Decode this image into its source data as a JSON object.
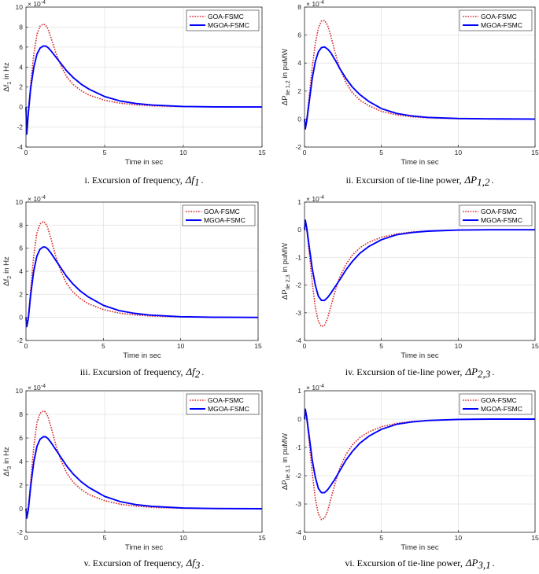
{
  "legend": {
    "series": [
      {
        "name": "GOA-FSMC",
        "color": "#d62728",
        "dash": "dotted"
      },
      {
        "name": "MGOA-FSMC",
        "color": "#0000ff",
        "dash": "solid"
      }
    ]
  },
  "chart_data": [
    {
      "id": "i",
      "type": "line",
      "xlabel": "Time in sec",
      "ylabel_main": "Δf",
      "ylabel_sub": "1",
      "ylabel_unit": "in Hz",
      "exponent": "× 10",
      "exponent_power": "-4",
      "xlim": [
        0,
        15
      ],
      "ylim": [
        -4,
        10
      ],
      "xticks": [
        0,
        5,
        10,
        15
      ],
      "yticks": [
        -4,
        -2,
        0,
        2,
        4,
        6,
        8,
        10
      ],
      "grid": true,
      "legend_position": "top-right",
      "series": [
        {
          "name": "GOA-FSMC",
          "x": [
            0,
            0.05,
            0.15,
            0.3,
            0.5,
            0.7,
            0.9,
            1.1,
            1.25,
            1.4,
            1.6,
            1.9,
            2.2,
            2.6,
            3,
            3.5,
            4,
            5,
            6,
            7,
            8,
            10,
            12,
            15
          ],
          "y": [
            0,
            -2.6,
            -0.5,
            2.4,
            5.3,
            7.3,
            8.1,
            8.3,
            8.2,
            7.8,
            6.9,
            5.4,
            4.2,
            3.0,
            2.25,
            1.65,
            1.2,
            0.68,
            0.38,
            0.22,
            0.12,
            0.04,
            0.01,
            0
          ]
        },
        {
          "name": "MGOA-FSMC",
          "x": [
            0,
            0.05,
            0.15,
            0.3,
            0.5,
            0.7,
            0.9,
            1.1,
            1.25,
            1.4,
            1.6,
            1.9,
            2.2,
            2.6,
            3,
            3.5,
            4,
            5,
            6,
            7,
            8,
            10,
            12,
            15
          ],
          "y": [
            0,
            -2.7,
            -0.6,
            1.9,
            4.0,
            5.3,
            5.9,
            6.1,
            6.1,
            5.95,
            5.6,
            5.0,
            4.4,
            3.6,
            2.95,
            2.3,
            1.8,
            1.05,
            0.6,
            0.35,
            0.2,
            0.06,
            0.02,
            0
          ]
        }
      ],
      "caption_prefix": "i.     Excursion of frequency,",
      "caption_var": "Δf",
      "caption_sub": "1",
      "caption_suffix": "."
    },
    {
      "id": "ii",
      "type": "line",
      "xlabel": "Time in sec",
      "ylabel_main": "ΔP",
      "ylabel_sub": "tie 1,2",
      "ylabel_unit": "in puMW",
      "exponent": "× 10",
      "exponent_power": "-4",
      "xlim": [
        0,
        15
      ],
      "ylim": [
        -2,
        8
      ],
      "xticks": [
        0,
        5,
        10,
        15
      ],
      "yticks": [
        -2,
        0,
        2,
        4,
        6,
        8
      ],
      "grid": true,
      "legend_position": "top-right",
      "series": [
        {
          "name": "GOA-FSMC",
          "x": [
            0,
            0.05,
            0.15,
            0.3,
            0.5,
            0.7,
            0.9,
            1.1,
            1.3,
            1.5,
            1.7,
            2,
            2.3,
            2.7,
            3.1,
            3.6,
            4.2,
            5,
            6,
            7,
            8,
            10,
            12,
            15
          ],
          "y": [
            0,
            -0.6,
            0,
            1.6,
            3.7,
            5.4,
            6.5,
            7.0,
            7.05,
            6.7,
            6.0,
            4.7,
            3.6,
            2.6,
            1.9,
            1.35,
            0.95,
            0.55,
            0.3,
            0.16,
            0.09,
            0.03,
            0.01,
            0
          ]
        },
        {
          "name": "MGOA-FSMC",
          "x": [
            0,
            0.05,
            0.15,
            0.3,
            0.5,
            0.7,
            0.9,
            1.1,
            1.3,
            1.5,
            1.7,
            2,
            2.3,
            2.7,
            3.1,
            3.6,
            4.2,
            5,
            6,
            7,
            8,
            10,
            12,
            15
          ],
          "y": [
            0,
            -0.7,
            -0.1,
            1.2,
            2.9,
            4.1,
            4.8,
            5.1,
            5.15,
            5.0,
            4.75,
            4.2,
            3.6,
            2.9,
            2.3,
            1.75,
            1.25,
            0.75,
            0.4,
            0.22,
            0.12,
            0.04,
            0.01,
            0
          ]
        }
      ],
      "caption_prefix": "ii.    Excursion of tie-line power,",
      "caption_var": "ΔP",
      "caption_sub": "1,2",
      "caption_suffix": "."
    },
    {
      "id": "iii",
      "type": "line",
      "xlabel": "Time in sec",
      "ylabel_main": "Δf",
      "ylabel_sub": "2",
      "ylabel_unit": "in Hz",
      "exponent": "× 10",
      "exponent_power": "-4",
      "xlim": [
        0,
        15
      ],
      "ylim": [
        -2,
        10
      ],
      "xticks": [
        0,
        5,
        10,
        15
      ],
      "yticks": [
        -2,
        0,
        2,
        4,
        6,
        8,
        10
      ],
      "grid": true,
      "legend_position": "top-right",
      "series": [
        {
          "name": "GOA-FSMC",
          "x": [
            0,
            0.05,
            0.15,
            0.3,
            0.5,
            0.7,
            0.9,
            1.1,
            1.25,
            1.4,
            1.6,
            1.9,
            2.2,
            2.6,
            3,
            3.5,
            4,
            5,
            6,
            7,
            8,
            10,
            12,
            15
          ],
          "y": [
            0,
            -0.7,
            0,
            2.4,
            5.3,
            7.3,
            8.1,
            8.3,
            8.2,
            7.8,
            6.9,
            5.4,
            4.2,
            3.0,
            2.25,
            1.65,
            1.2,
            0.68,
            0.38,
            0.22,
            0.12,
            0.04,
            0.01,
            0
          ]
        },
        {
          "name": "MGOA-FSMC",
          "x": [
            0,
            0.05,
            0.15,
            0.3,
            0.5,
            0.7,
            0.9,
            1.1,
            1.25,
            1.4,
            1.6,
            1.9,
            2.2,
            2.6,
            3,
            3.5,
            4,
            5,
            6,
            7,
            8,
            10,
            12,
            15
          ],
          "y": [
            0,
            -0.8,
            -0.1,
            1.9,
            4.0,
            5.3,
            5.9,
            6.1,
            6.1,
            5.95,
            5.6,
            5.0,
            4.4,
            3.6,
            2.95,
            2.3,
            1.8,
            1.05,
            0.6,
            0.35,
            0.2,
            0.06,
            0.02,
            0
          ]
        }
      ],
      "caption_prefix": "iii.  Excursion of frequency,",
      "caption_var": "Δf",
      "caption_sub": "2",
      "caption_suffix": "."
    },
    {
      "id": "iv",
      "type": "line",
      "xlabel": "Time in sec",
      "ylabel_main": "ΔP",
      "ylabel_sub": "tie 2,3",
      "ylabel_unit": "in puMW",
      "exponent": "× 10",
      "exponent_power": "-4",
      "xlim": [
        0,
        15
      ],
      "ylim": [
        -4,
        1
      ],
      "xticks": [
        0,
        5,
        10,
        15
      ],
      "yticks": [
        -4,
        -3,
        -2,
        -1,
        0,
        1
      ],
      "grid": true,
      "legend_position": "top-right",
      "series": [
        {
          "name": "GOA-FSMC",
          "x": [
            0,
            0.05,
            0.15,
            0.3,
            0.5,
            0.7,
            0.9,
            1.1,
            1.3,
            1.5,
            1.7,
            2,
            2.3,
            2.7,
            3.1,
            3.6,
            4.2,
            5,
            6,
            7,
            8,
            10,
            12,
            15
          ],
          "y": [
            0,
            0.3,
            0,
            -0.8,
            -1.9,
            -2.8,
            -3.3,
            -3.5,
            -3.45,
            -3.2,
            -2.8,
            -2.2,
            -1.7,
            -1.25,
            -0.92,
            -0.65,
            -0.45,
            -0.27,
            -0.15,
            -0.08,
            -0.05,
            -0.01,
            0,
            0
          ]
        },
        {
          "name": "MGOA-FSMC",
          "x": [
            0,
            0.05,
            0.15,
            0.3,
            0.5,
            0.7,
            0.9,
            1.1,
            1.3,
            1.5,
            1.7,
            2,
            2.3,
            2.7,
            3.1,
            3.6,
            4.2,
            5,
            6,
            7,
            8,
            10,
            12,
            15
          ],
          "y": [
            0,
            0.35,
            0.05,
            -0.6,
            -1.4,
            -2.0,
            -2.4,
            -2.55,
            -2.55,
            -2.45,
            -2.3,
            -2.05,
            -1.8,
            -1.45,
            -1.15,
            -0.85,
            -0.6,
            -0.36,
            -0.18,
            -0.1,
            -0.05,
            -0.01,
            0,
            0
          ]
        }
      ],
      "caption_prefix": "iv.  Excursion of tie-line power,",
      "caption_var": "ΔP",
      "caption_sub": "2,3",
      "caption_suffix": "."
    },
    {
      "id": "v",
      "type": "line",
      "xlabel": "Time in sec",
      "ylabel_main": "Δf",
      "ylabel_sub": "3",
      "ylabel_unit": "in Hz",
      "exponent": "× 10",
      "exponent_power": "-4",
      "xlim": [
        0,
        15
      ],
      "ylim": [
        -2,
        10
      ],
      "xticks": [
        0,
        5,
        10,
        15
      ],
      "yticks": [
        -2,
        0,
        2,
        4,
        6,
        8,
        10
      ],
      "grid": true,
      "legend_position": "top-right",
      "series": [
        {
          "name": "GOA-FSMC",
          "x": [
            0,
            0.05,
            0.15,
            0.3,
            0.5,
            0.7,
            0.9,
            1.1,
            1.25,
            1.4,
            1.6,
            1.9,
            2.2,
            2.6,
            3,
            3.5,
            4,
            5,
            6,
            7,
            8,
            10,
            12,
            15
          ],
          "y": [
            0,
            -0.7,
            0,
            2.4,
            5.3,
            7.3,
            8.1,
            8.3,
            8.2,
            7.8,
            6.9,
            5.4,
            4.2,
            3.0,
            2.25,
            1.65,
            1.2,
            0.68,
            0.38,
            0.22,
            0.12,
            0.04,
            0.01,
            0
          ]
        },
        {
          "name": "MGOA-FSMC",
          "x": [
            0,
            0.05,
            0.15,
            0.3,
            0.5,
            0.7,
            0.9,
            1.1,
            1.25,
            1.4,
            1.6,
            1.9,
            2.2,
            2.6,
            3,
            3.5,
            4,
            5,
            6,
            7,
            8,
            10,
            12,
            15
          ],
          "y": [
            0,
            -0.8,
            -0.1,
            1.9,
            4.0,
            5.3,
            5.9,
            6.1,
            6.1,
            5.95,
            5.6,
            5.0,
            4.4,
            3.6,
            2.95,
            2.3,
            1.8,
            1.05,
            0.6,
            0.35,
            0.2,
            0.06,
            0.02,
            0
          ]
        }
      ],
      "caption_prefix": "v.   Excursion of frequency,",
      "caption_var": "Δf",
      "caption_sub": "3",
      "caption_suffix": "."
    },
    {
      "id": "vi",
      "type": "line",
      "xlabel": "Time in sec",
      "ylabel_main": "ΔP",
      "ylabel_sub": "tie 3,1",
      "ylabel_unit": "in puMW",
      "exponent": "× 10",
      "exponent_power": "-4",
      "xlim": [
        0,
        15
      ],
      "ylim": [
        -4,
        1
      ],
      "xticks": [
        0,
        5,
        10,
        15
      ],
      "yticks": [
        -4,
        -3,
        -2,
        -1,
        0,
        1
      ],
      "grid": true,
      "legend_position": "top-right",
      "series": [
        {
          "name": "GOA-FSMC",
          "x": [
            0,
            0.05,
            0.15,
            0.3,
            0.5,
            0.7,
            0.9,
            1.1,
            1.3,
            1.5,
            1.7,
            2,
            2.3,
            2.7,
            3.1,
            3.6,
            4.2,
            5,
            6,
            7,
            8,
            10,
            12,
            15
          ],
          "y": [
            0,
            0.3,
            0,
            -0.8,
            -1.9,
            -2.8,
            -3.35,
            -3.55,
            -3.5,
            -3.25,
            -2.85,
            -2.25,
            -1.72,
            -1.25,
            -0.92,
            -0.65,
            -0.45,
            -0.27,
            -0.15,
            -0.08,
            -0.05,
            -0.01,
            0,
            0
          ]
        },
        {
          "name": "MGOA-FSMC",
          "x": [
            0,
            0.05,
            0.15,
            0.3,
            0.5,
            0.7,
            0.9,
            1.1,
            1.3,
            1.5,
            1.7,
            2,
            2.3,
            2.7,
            3.1,
            3.6,
            4.2,
            5,
            6,
            7,
            8,
            10,
            12,
            15
          ],
          "y": [
            0,
            0.35,
            0.05,
            -0.6,
            -1.45,
            -2.05,
            -2.45,
            -2.6,
            -2.6,
            -2.5,
            -2.35,
            -2.1,
            -1.82,
            -1.45,
            -1.15,
            -0.85,
            -0.6,
            -0.36,
            -0.18,
            -0.1,
            -0.05,
            -0.01,
            0,
            0
          ]
        }
      ],
      "caption_prefix": "vi.  Excursion of tie-line power,",
      "caption_var": "ΔP",
      "caption_sub": "3,1",
      "caption_suffix": "."
    }
  ]
}
